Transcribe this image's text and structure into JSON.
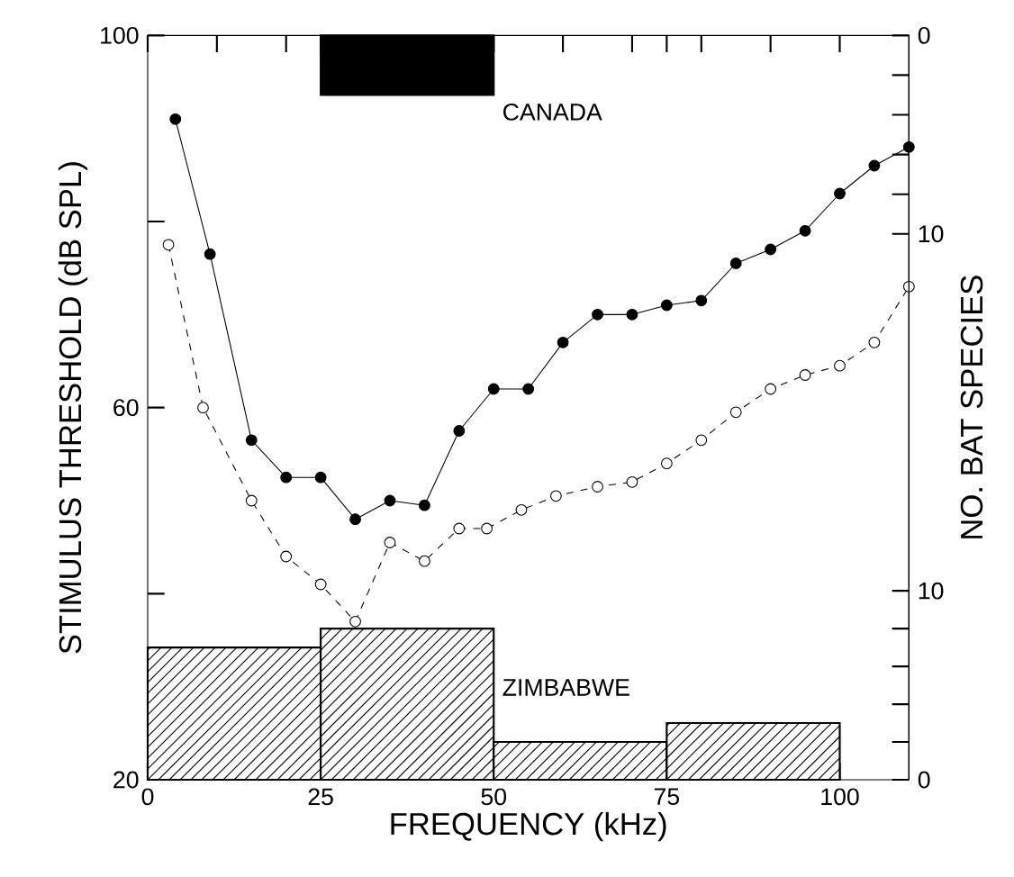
{
  "chart_data": {
    "type": "histogram",
    "xlabel": "FREQUENCY (kHz)",
    "ylabel": "STIMULUS THRESHOLD (dB SPL)",
    "y2label": "NO. BAT SPECIES",
    "xlim": [
      0,
      110
    ],
    "ylim": [
      20,
      100
    ],
    "y2lim": [
      37.5,
      0
    ],
    "y3lim": [
      0,
      39.4
    ],
    "xticks": [
      0,
      {
        "value": 10,
        "label": null
      },
      {
        "value": 20,
        "label": null
      },
      25,
      {
        "value": 30,
        "label": null
      },
      {
        "value": 40,
        "label": null
      },
      50,
      {
        "value": 60,
        "label": null
      },
      {
        "value": 70,
        "label": null
      },
      75,
      {
        "value": 80,
        "label": null
      },
      {
        "value": 90,
        "label": null
      },
      100
    ],
    "yticks": [
      20,
      {
        "value": 40,
        "label": null
      },
      60,
      {
        "value": 80,
        "label": null
      },
      100
    ],
    "y2ticks": [
      0,
      {
        "value": 2,
        "label": null
      },
      {
        "value": 4,
        "label": null
      },
      {
        "value": 6,
        "label": null
      },
      {
        "value": 8,
        "label": null
      },
      10
    ],
    "y3ticks": [
      0,
      {
        "value": 2,
        "label": null
      },
      {
        "value": 4,
        "label": null
      },
      {
        "value": 6,
        "label": null
      },
      {
        "value": 8,
        "label": null
      },
      10
    ],
    "series": [
      {
        "name": "CANADA",
        "axis": "y2",
        "color": "#000000",
        "bins": [
          25,
          50
        ],
        "values": [
          3
        ]
      },
      {
        "name": "ZIMBABWE",
        "axis": "y3",
        "color": "#000000",
        "bins": [
          0,
          25,
          50,
          75,
          100
        ],
        "values": [
          7,
          8,
          2,
          3
        ]
      },
      {
        "type": "line",
        "color": "#000000",
        "marker": "circle",
        "line_style": "solid",
        "x": [
          4,
          9,
          15,
          20,
          25,
          30,
          35,
          40,
          45,
          50,
          55,
          60,
          65,
          70,
          75,
          80,
          85,
          90,
          95,
          100,
          105,
          110
        ],
        "values": [
          91,
          76.5,
          56.5,
          52.5,
          52.5,
          48,
          50,
          49.5,
          57.5,
          62,
          62,
          67,
          70,
          70,
          71,
          71.5,
          75.5,
          77,
          79,
          83,
          86,
          88
        ]
      },
      {
        "type": "line",
        "color": "#000000",
        "marker": "circle",
        "line_style": "dashed",
        "x": [
          3,
          8,
          15,
          20,
          25,
          30,
          35,
          40,
          45,
          49,
          54,
          59,
          65,
          70,
          75,
          80,
          85,
          90,
          95,
          100,
          105,
          110
        ],
        "values": [
          77.5,
          60,
          50,
          44,
          41,
          37,
          45.5,
          43.5,
          47,
          47,
          49,
          50.5,
          51.5,
          52,
          54,
          56.5,
          59.5,
          62,
          63.5,
          64.5,
          67,
          73
        ]
      }
    ]
  }
}
